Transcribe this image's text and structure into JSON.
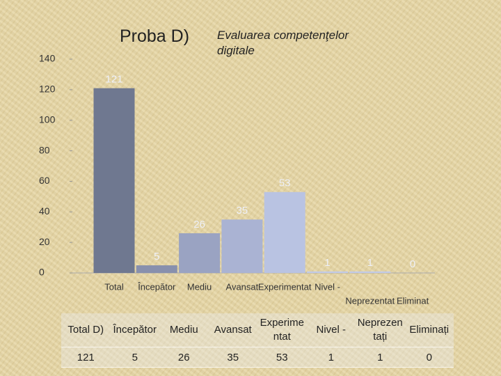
{
  "chart_data": {
    "type": "bar",
    "title": "Proba D)",
    "subtitle": "Evaluarea competenţelor digitale",
    "categories": [
      "Total",
      "Începător",
      "Mediu",
      "Avansat",
      "Experimentat",
      "Nivel -",
      "Neprezentat",
      "Eliminat"
    ],
    "values": [
      121,
      5,
      26,
      35,
      53,
      1,
      1,
      0
    ],
    "colors": [
      "#6f7890",
      "#8890ad",
      "#9aa3c2",
      "#aab3d3",
      "#b9c3e2",
      "#c3cbe6",
      "#c3cbe6",
      "#c3cbe6"
    ],
    "ylim": [
      0,
      140
    ],
    "yticks": [
      0,
      20,
      40,
      60,
      80,
      100,
      120,
      140
    ],
    "grid": false
  },
  "table": {
    "header": [
      "Total D)",
      "Începător",
      "Mediu",
      "Avansat",
      "Experimentat",
      "Nivel -",
      "Neprezentați",
      "Eliminați"
    ],
    "rows": [
      [
        "121",
        "5",
        "26",
        "35",
        "53",
        "1",
        "1",
        "0"
      ]
    ]
  }
}
